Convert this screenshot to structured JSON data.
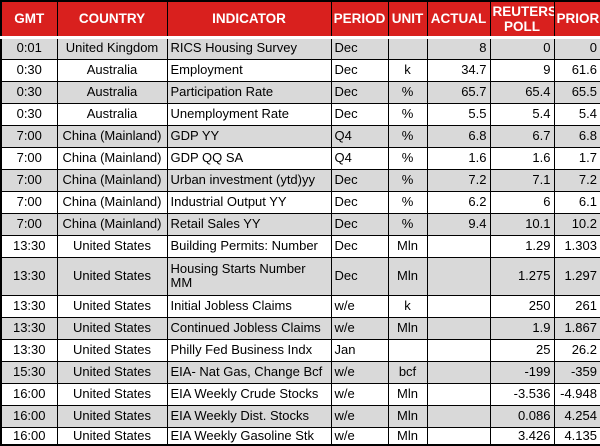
{
  "chart_data": {
    "type": "table",
    "columns": [
      "GMT",
      "COUNTRY",
      "INDICATOR",
      "PERIOD",
      "UNIT",
      "ACTUAL",
      "REUTERS POLL",
      "PRIOR"
    ],
    "column_keys": [
      "gmt",
      "country",
      "indicator",
      "period",
      "unit",
      "actual",
      "reuters-poll",
      "prior"
    ],
    "column_align": [
      "center",
      "center",
      "left",
      "left",
      "center",
      "right",
      "right",
      "right"
    ],
    "rows": [
      [
        "0:01",
        "United Kingdom",
        "RICS Housing Survey",
        "Dec",
        "",
        "8",
        "0",
        "0"
      ],
      [
        "0:30",
        "Australia",
        "Employment",
        "Dec",
        "k",
        "34.7",
        "9",
        "61.6"
      ],
      [
        "0:30",
        "Australia",
        "Participation Rate",
        "Dec",
        "%",
        "65.7",
        "65.4",
        "65.5"
      ],
      [
        "0:30",
        "Australia",
        "Unemployment Rate",
        "Dec",
        "%",
        "5.5",
        "5.4",
        "5.4"
      ],
      [
        "7:00",
        "China (Mainland)",
        "GDP YY",
        "Q4",
        "%",
        "6.8",
        "6.7",
        "6.8"
      ],
      [
        "7:00",
        "China (Mainland)",
        "GDP QQ SA",
        "Q4",
        "%",
        "1.6",
        "1.6",
        "1.7"
      ],
      [
        "7:00",
        "China (Mainland)",
        "Urban investment (ytd)yy",
        "Dec",
        "%",
        "7.2",
        "7.1",
        "7.2"
      ],
      [
        "7:00",
        "China (Mainland)",
        "Industrial Output YY",
        "Dec",
        "%",
        "6.2",
        "6",
        "6.1"
      ],
      [
        "7:00",
        "China (Mainland)",
        "Retail Sales YY",
        "Dec",
        "%",
        "9.4",
        "10.1",
        "10.2"
      ],
      [
        "13:30",
        "United States",
        "Building Permits: Number",
        "Dec",
        "Mln",
        "",
        "1.29",
        "1.303"
      ],
      [
        "13:30",
        "United States",
        "Housing Starts Number MM",
        "Dec",
        "Mln",
        "",
        "1.275",
        "1.297"
      ],
      [
        "13:30",
        "United States",
        "Initial Jobless Claims",
        "w/e",
        "k",
        "",
        "250",
        "261"
      ],
      [
        "13:30",
        "United States",
        "Continued Jobless Claims",
        "w/e",
        "Mln",
        "",
        "1.9",
        "1.867"
      ],
      [
        "13:30",
        "United States",
        "Philly Fed Business Indx",
        "Jan",
        "",
        "",
        "25",
        "26.2"
      ],
      [
        "15:30",
        "United States",
        "EIA- Nat Gas, Change Bcf",
        "w/e",
        "bcf",
        "",
        "-199",
        "-359"
      ],
      [
        "16:00",
        "United States",
        "EIA Weekly Crude Stocks",
        "w/e",
        "Mln",
        "",
        "-3.536",
        "-4.948"
      ],
      [
        "16:00",
        "United States",
        "EIA Weekly Dist. Stocks",
        "w/e",
        "Mln",
        "",
        "0.086",
        "4.254"
      ],
      [
        "16:00",
        "United States",
        "EIA Weekly Gasoline Stk",
        "w/e",
        "Mln",
        "",
        "3.426",
        "4.135"
      ]
    ],
    "layout": {
      "double_height_row_index": 10,
      "zebra_start": "gray",
      "grid_on": true
    },
    "colors": {
      "header_bg": "#D9201E",
      "header_text": "#FFFFFF",
      "row_alt_bg": "#D9D9D9",
      "row_bg": "#FFFFFF",
      "grid": "#000000"
    }
  }
}
